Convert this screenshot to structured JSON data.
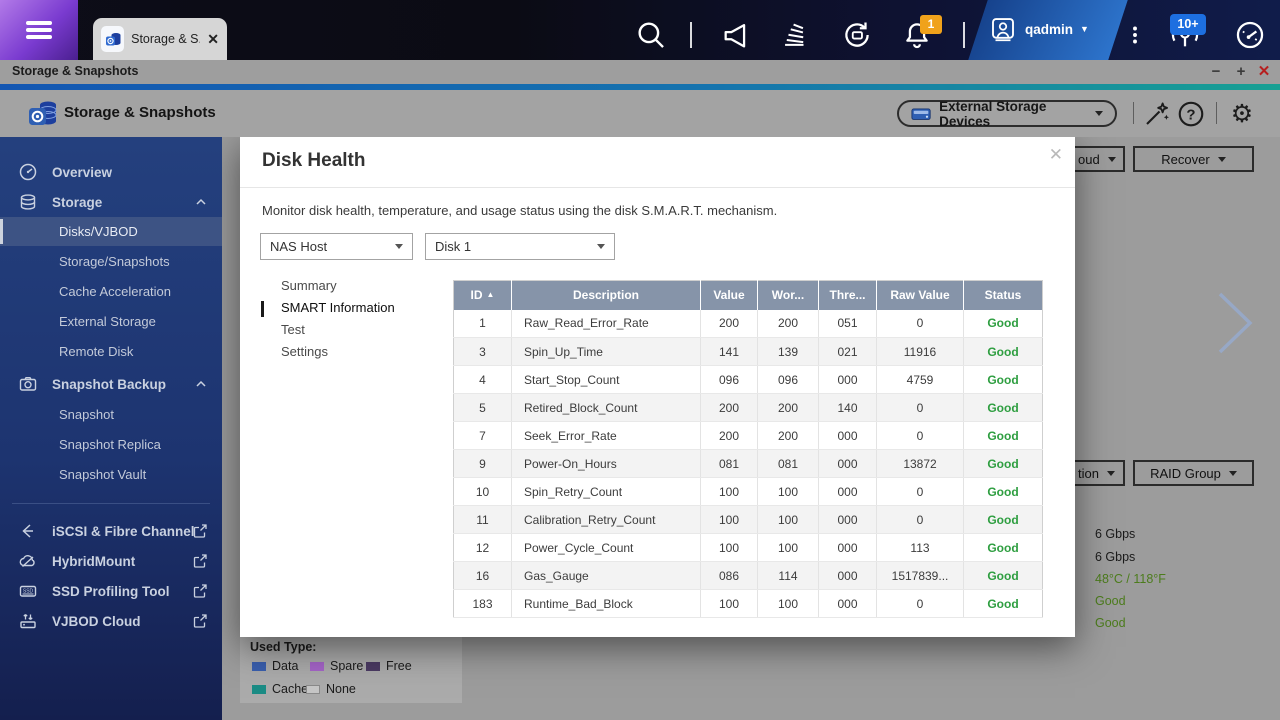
{
  "topbar": {
    "tab_label": "Storage & S...",
    "tab_close": "✕",
    "username": "qadmin",
    "user_caret": "▼",
    "notification_count": "1",
    "device_count": "10+"
  },
  "titlebar": {
    "title": "Storage & Snapshots",
    "minimize": "−",
    "maximize": "+",
    "close": "✕"
  },
  "header": {
    "title": "Storage & Snapshots",
    "device_selector_label": "External Storage Devices"
  },
  "sidebar": {
    "items": [
      {
        "label": "Overview"
      },
      {
        "label": "Storage"
      },
      {
        "label": "Disks/VJBOD"
      },
      {
        "label": "Storage/Snapshots"
      },
      {
        "label": "Cache Acceleration"
      },
      {
        "label": "External Storage"
      },
      {
        "label": "Remote Disk"
      },
      {
        "label": "Snapshot Backup"
      },
      {
        "label": "Snapshot"
      },
      {
        "label": "Snapshot Replica"
      },
      {
        "label": "Snapshot Vault"
      },
      {
        "label": "iSCSI & Fibre Channel"
      },
      {
        "label": "HybridMount"
      },
      {
        "label": "SSD Profiling Tool"
      },
      {
        "label": "VJBOD Cloud"
      }
    ]
  },
  "background": {
    "cloud_button_partial": "oud",
    "recover_button": "Recover",
    "action_button_partial": "tion",
    "raid_group_button": "RAID Group",
    "details": [
      "6 Gbps",
      "6 Gbps",
      "48°C / 118°F",
      "Good",
      "Good"
    ],
    "legend": {
      "title": "Used Type:",
      "items": [
        {
          "label": "Data",
          "color": "#3a5fae"
        },
        {
          "label": "Spare",
          "color": "#a565c8"
        },
        {
          "label": "Free",
          "color": "#4b3a63"
        },
        {
          "label": "Cache",
          "color": "#1b8c85"
        },
        {
          "label": "None",
          "color": "#c6c6c6"
        }
      ]
    }
  },
  "modal": {
    "title": "Disk Health",
    "close": "✕",
    "description": "Monitor disk health, temperature, and usage status using the disk S.M.A.R.T. mechanism.",
    "host_selector": "NAS Host",
    "disk_selector": "Disk 1",
    "nav": [
      "Summary",
      "SMART Information",
      "Test",
      "Settings"
    ],
    "selected_nav": "SMART Information",
    "table": {
      "sort_icon": "▲",
      "headers": [
        "ID",
        "Description",
        "Value",
        "Wor...",
        "Thre...",
        "Raw Value",
        "Status"
      ],
      "status_color": "#2e9e40",
      "rows": [
        [
          "1",
          "Raw_Read_Error_Rate",
          "200",
          "200",
          "051",
          "0",
          "Good"
        ],
        [
          "3",
          "Spin_Up_Time",
          "141",
          "139",
          "021",
          "11916",
          "Good"
        ],
        [
          "4",
          "Start_Stop_Count",
          "096",
          "096",
          "000",
          "4759",
          "Good"
        ],
        [
          "5",
          "Retired_Block_Count",
          "200",
          "200",
          "140",
          "0",
          "Good"
        ],
        [
          "7",
          "Seek_Error_Rate",
          "200",
          "200",
          "000",
          "0",
          "Good"
        ],
        [
          "9",
          "Power-On_Hours",
          "081",
          "081",
          "000",
          "13872",
          "Good"
        ],
        [
          "10",
          "Spin_Retry_Count",
          "100",
          "100",
          "000",
          "0",
          "Good"
        ],
        [
          "11",
          "Calibration_Retry_Count",
          "100",
          "100",
          "000",
          "0",
          "Good"
        ],
        [
          "12",
          "Power_Cycle_Count",
          "100",
          "100",
          "000",
          "113",
          "Good"
        ],
        [
          "16",
          "Gas_Gauge",
          "086",
          "114",
          "000",
          "1517839...",
          "Good"
        ],
        [
          "183",
          "Runtime_Bad_Block",
          "100",
          "100",
          "000",
          "0",
          "Good"
        ]
      ]
    }
  }
}
